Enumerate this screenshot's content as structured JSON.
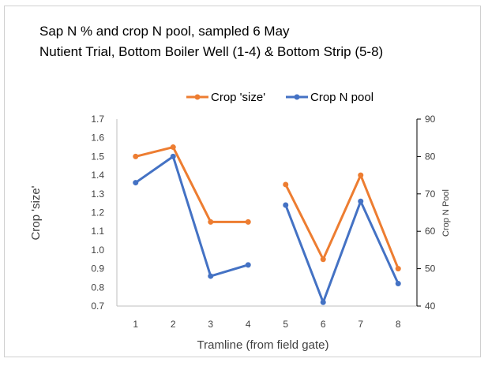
{
  "chart_data": {
    "type": "line",
    "title": "Sap N % and crop N pool, sampled 6 May",
    "subtitle": "Nutient Trial, Bottom Boiler Well (1-4) & Bottom Strip (5-8)",
    "xlabel": "Tramline (from field gate)",
    "ylabel": "Crop 'size'",
    "y2label": "Crop N Pool",
    "categories": [
      "1",
      "2",
      "3",
      "4",
      "5",
      "6",
      "7",
      "8"
    ],
    "ylim": [
      0.7,
      1.7
    ],
    "y_ticks": [
      "0.7",
      "0.8",
      "0.9",
      "1.0",
      "1.1",
      "1.2",
      "1.3",
      "1.4",
      "1.5",
      "1.6",
      "1.7"
    ],
    "y2lim": [
      40,
      90
    ],
    "y2_ticks": [
      "40",
      "50",
      "60",
      "70",
      "80",
      "90"
    ],
    "legend_position": "top-center",
    "grid": false,
    "series": [
      {
        "name": "Crop 'size'",
        "axis": "left",
        "color": "#ED7D31",
        "segments": [
          [
            1,
            2,
            3,
            4
          ],
          [
            5,
            6,
            7,
            8
          ]
        ],
        "values": [
          1.5,
          1.55,
          1.15,
          1.15,
          1.35,
          0.95,
          1.4,
          0.9
        ]
      },
      {
        "name": "Crop N pool",
        "axis": "right",
        "color": "#4472C4",
        "segments": [
          [
            1,
            2,
            3,
            4
          ],
          [
            5,
            6,
            7,
            8
          ]
        ],
        "values": [
          73,
          80,
          48,
          51,
          67,
          41,
          68,
          46
        ]
      }
    ]
  }
}
